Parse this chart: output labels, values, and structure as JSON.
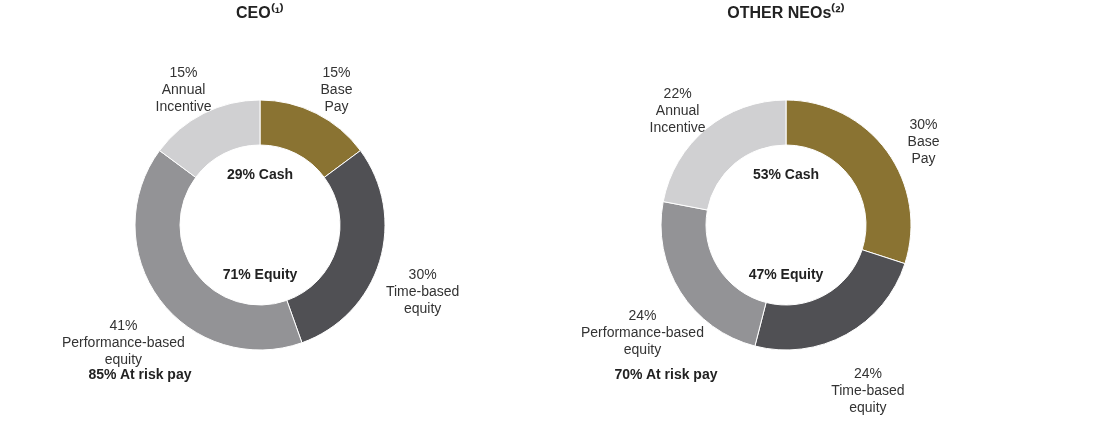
{
  "chart_data": [
    {
      "type": "donut",
      "title": "CEO⁽¹⁾",
      "categories": [
        "Base Pay",
        "Time-based equity",
        "Performance-based equity",
        "Annual Incentive"
      ],
      "values": [
        15,
        30,
        41,
        15
      ],
      "value_labels": [
        "15%",
        "30%",
        "41%",
        "15%"
      ],
      "colors": [
        "#8a7332",
        "#505054",
        "#939396",
        "#d0d0d2"
      ],
      "annotations": [
        "29% Cash",
        "71% Equity",
        "85% At risk pay"
      ],
      "legend": false
    },
    {
      "type": "donut",
      "title": "OTHER NEOs⁽²⁾",
      "categories": [
        "Base Pay",
        "Time-based equity",
        "Performance-based equity",
        "Annual Incentive"
      ],
      "values": [
        30,
        24,
        24,
        22
      ],
      "value_labels": [
        "30%",
        "24%",
        "24%",
        "22%"
      ],
      "colors": [
        "#8a7332",
        "#505054",
        "#939396",
        "#d0d0d2"
      ],
      "annotations": [
        "53% Cash",
        "47% Equity",
        "70% At risk pay"
      ],
      "legend": false
    }
  ]
}
